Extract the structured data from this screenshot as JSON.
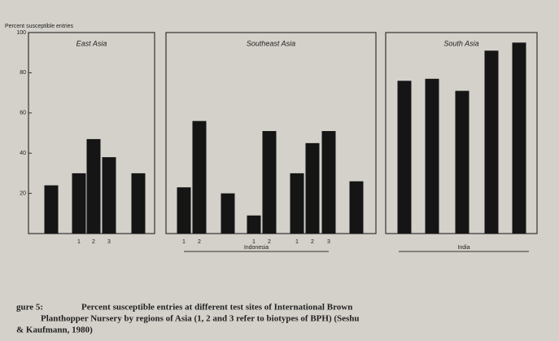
{
  "chart_data": [
    {
      "type": "bar",
      "title": "East Asia",
      "y_label": "Percent susceptible entries",
      "categories": [
        null,
        "1",
        "2",
        "3",
        null
      ],
      "values": [
        24,
        30,
        47,
        38,
        30
      ],
      "color": "#151515",
      "ylim": [
        0,
        100
      ],
      "yticks": [
        20,
        40,
        60,
        80,
        100
      ]
    },
    {
      "type": "bar",
      "title": "Southeast Asia",
      "categories": [
        "1",
        "2",
        null,
        "1",
        "2",
        "1",
        "2",
        "3",
        null
      ],
      "values": [
        23,
        56,
        20,
        9,
        51,
        30,
        45,
        51,
        26
      ],
      "color": "#151515",
      "ylim": [
        0,
        100
      ],
      "annotations": [
        "Indonesia"
      ]
    },
    {
      "type": "bar",
      "title": "South Asia",
      "categories": [
        null,
        null,
        null,
        null,
        null
      ],
      "values": [
        76,
        77,
        71,
        91,
        95
      ],
      "color": "#151515",
      "ylim": [
        0,
        100
      ],
      "annotations": [
        "India"
      ]
    }
  ],
  "caption": [
    "gure 5:",
    "Percent susceptible entries at different test sites of International Brown",
    "Planthopper Nursery by regions of Asia (1, 2 and 3 refer to biotypes of BPH) (Seshu",
    "& Kaufmann, 1980)"
  ]
}
